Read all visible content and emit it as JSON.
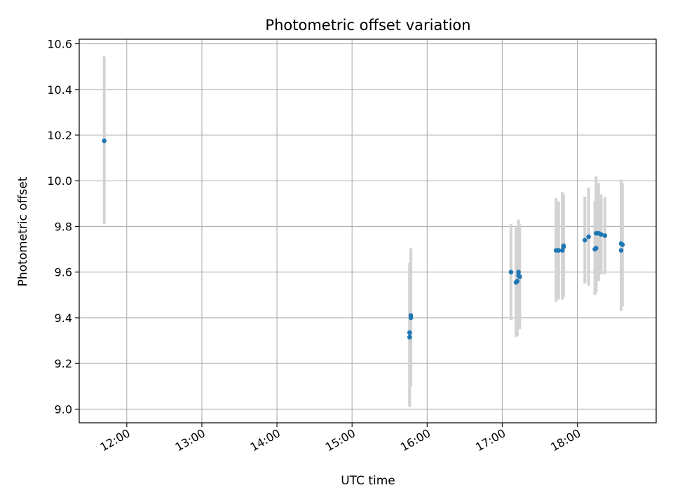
{
  "chart_data": {
    "type": "scatter",
    "title": "Photometric offset variation",
    "xlabel": "UTC time",
    "ylabel": "Photometric offset",
    "xlim": [
      "11:22",
      "19:03"
    ],
    "ylim": [
      8.94,
      10.62
    ],
    "x_ticks": [
      "12:00",
      "13:00",
      "14:00",
      "15:00",
      "16:00",
      "17:00",
      "18:00"
    ],
    "y_ticks": [
      "9.0",
      "9.2",
      "9.4",
      "9.6",
      "9.8",
      "10.0",
      "10.2",
      "10.4",
      "10.6"
    ],
    "grid": true,
    "marker_color": "#1f77b4",
    "errorbar_color": "#d3d3d3",
    "points": [
      {
        "x": "11:42",
        "y": 10.175,
        "ylow": 9.81,
        "yhigh": 10.545
      },
      {
        "x": "15:46",
        "y": 9.315,
        "ylow": 9.01,
        "yhigh": 9.62
      },
      {
        "x": "15:46",
        "y": 9.335,
        "ylow": 9.03,
        "yhigh": 9.64
      },
      {
        "x": "15:47",
        "y": 9.4,
        "ylow": 9.1,
        "yhigh": 9.7
      },
      {
        "x": "15:47",
        "y": 9.41,
        "ylow": 9.12,
        "yhigh": 9.705
      },
      {
        "x": "17:07",
        "y": 9.6,
        "ylow": 9.39,
        "yhigh": 9.81
      },
      {
        "x": "17:11",
        "y": 9.555,
        "ylow": 9.315,
        "yhigh": 9.795
      },
      {
        "x": "17:12",
        "y": 9.56,
        "ylow": 9.32,
        "yhigh": 9.8
      },
      {
        "x": "17:13",
        "y": 9.6,
        "ylow": 9.37,
        "yhigh": 9.83
      },
      {
        "x": "17:13",
        "y": 9.585,
        "ylow": 9.35,
        "yhigh": 9.82
      },
      {
        "x": "17:14",
        "y": 9.58,
        "ylow": 9.35,
        "yhigh": 9.81
      },
      {
        "x": "17:43",
        "y": 9.695,
        "ylow": 9.47,
        "yhigh": 9.925
      },
      {
        "x": "17:45",
        "y": 9.695,
        "ylow": 9.48,
        "yhigh": 9.91
      },
      {
        "x": "17:48",
        "y": 9.695,
        "ylow": 9.48,
        "yhigh": 9.95
      },
      {
        "x": "17:49",
        "y": 9.71,
        "ylow": 9.49,
        "yhigh": 9.93
      },
      {
        "x": "17:49",
        "y": 9.715,
        "ylow": 9.5,
        "yhigh": 9.94
      },
      {
        "x": "18:06",
        "y": 9.74,
        "ylow": 9.55,
        "yhigh": 9.93
      },
      {
        "x": "18:09",
        "y": 9.755,
        "ylow": 9.54,
        "yhigh": 9.97
      },
      {
        "x": "18:14",
        "y": 9.7,
        "ylow": 9.5,
        "yhigh": 9.91
      },
      {
        "x": "18:15",
        "y": 9.705,
        "ylow": 9.51,
        "yhigh": 9.95
      },
      {
        "x": "18:15",
        "y": 9.77,
        "ylow": 9.52,
        "yhigh": 10.02
      },
      {
        "x": "18:17",
        "y": 9.77,
        "ylow": 9.56,
        "yhigh": 9.99
      },
      {
        "x": "18:19",
        "y": 9.765,
        "ylow": 9.59,
        "yhigh": 9.94
      },
      {
        "x": "18:22",
        "y": 9.76,
        "ylow": 9.59,
        "yhigh": 9.93
      },
      {
        "x": "18:35",
        "y": 9.695,
        "ylow": 9.43,
        "yhigh": 9.96
      },
      {
        "x": "18:35",
        "y": 9.725,
        "ylow": 9.44,
        "yhigh": 10.005
      },
      {
        "x": "18:36",
        "y": 9.72,
        "ylow": 9.45,
        "yhigh": 9.99
      }
    ]
  }
}
